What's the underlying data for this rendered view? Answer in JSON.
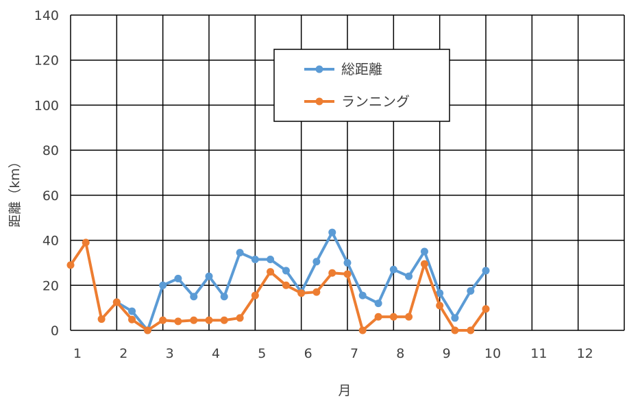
{
  "chart_data": {
    "type": "line",
    "xlabel": "月",
    "ylabel": "距離（km）",
    "xlim": [
      1,
      13
    ],
    "ylim": [
      0,
      140
    ],
    "x_ticks": [
      "1",
      "2",
      "3",
      "4",
      "5",
      "6",
      "7",
      "8",
      "9",
      "10",
      "11",
      "12"
    ],
    "y_ticks": [
      "0",
      "20",
      "40",
      "60",
      "80",
      "100",
      "120",
      "140"
    ],
    "grid": true,
    "legend_position": "top-center",
    "series": [
      {
        "name": "総距離",
        "color": "#5B9BD5",
        "x": [
          2.0,
          2.33,
          2.67,
          3.0,
          3.33,
          3.67,
          4.0,
          4.33,
          4.67,
          5.0,
          5.33,
          5.67,
          6.0,
          6.33,
          6.67,
          7.0,
          7.33,
          7.67,
          8.0,
          8.33,
          8.67,
          9.0,
          9.33,
          9.67,
          10.0
        ],
        "values": [
          12.5,
          8.5,
          0,
          20,
          23,
          15,
          24,
          15,
          34.5,
          31.5,
          31.5,
          26.5,
          17,
          30.5,
          43.5,
          30,
          15.5,
          12,
          27,
          24,
          35,
          16.5,
          5.5,
          17.5,
          26.5
        ]
      },
      {
        "name": "ランニング",
        "color": "#ED7D31",
        "x": [
          1.0,
          1.33,
          1.67,
          2.0,
          2.33,
          2.67,
          3.0,
          3.33,
          3.67,
          4.0,
          4.33,
          4.67,
          5.0,
          5.33,
          5.67,
          6.0,
          6.33,
          6.67,
          7.0,
          7.33,
          7.67,
          8.0,
          8.33,
          8.67,
          9.0,
          9.33,
          9.67,
          10.0
        ],
        "values": [
          29,
          39,
          5,
          12.5,
          4.8,
          0,
          4.5,
          4,
          4.5,
          4.5,
          4.5,
          5.5,
          15.5,
          26,
          20,
          16.5,
          17,
          25.5,
          25,
          0,
          6,
          6,
          6,
          29.5,
          11,
          0,
          0,
          9.5
        ]
      }
    ]
  }
}
